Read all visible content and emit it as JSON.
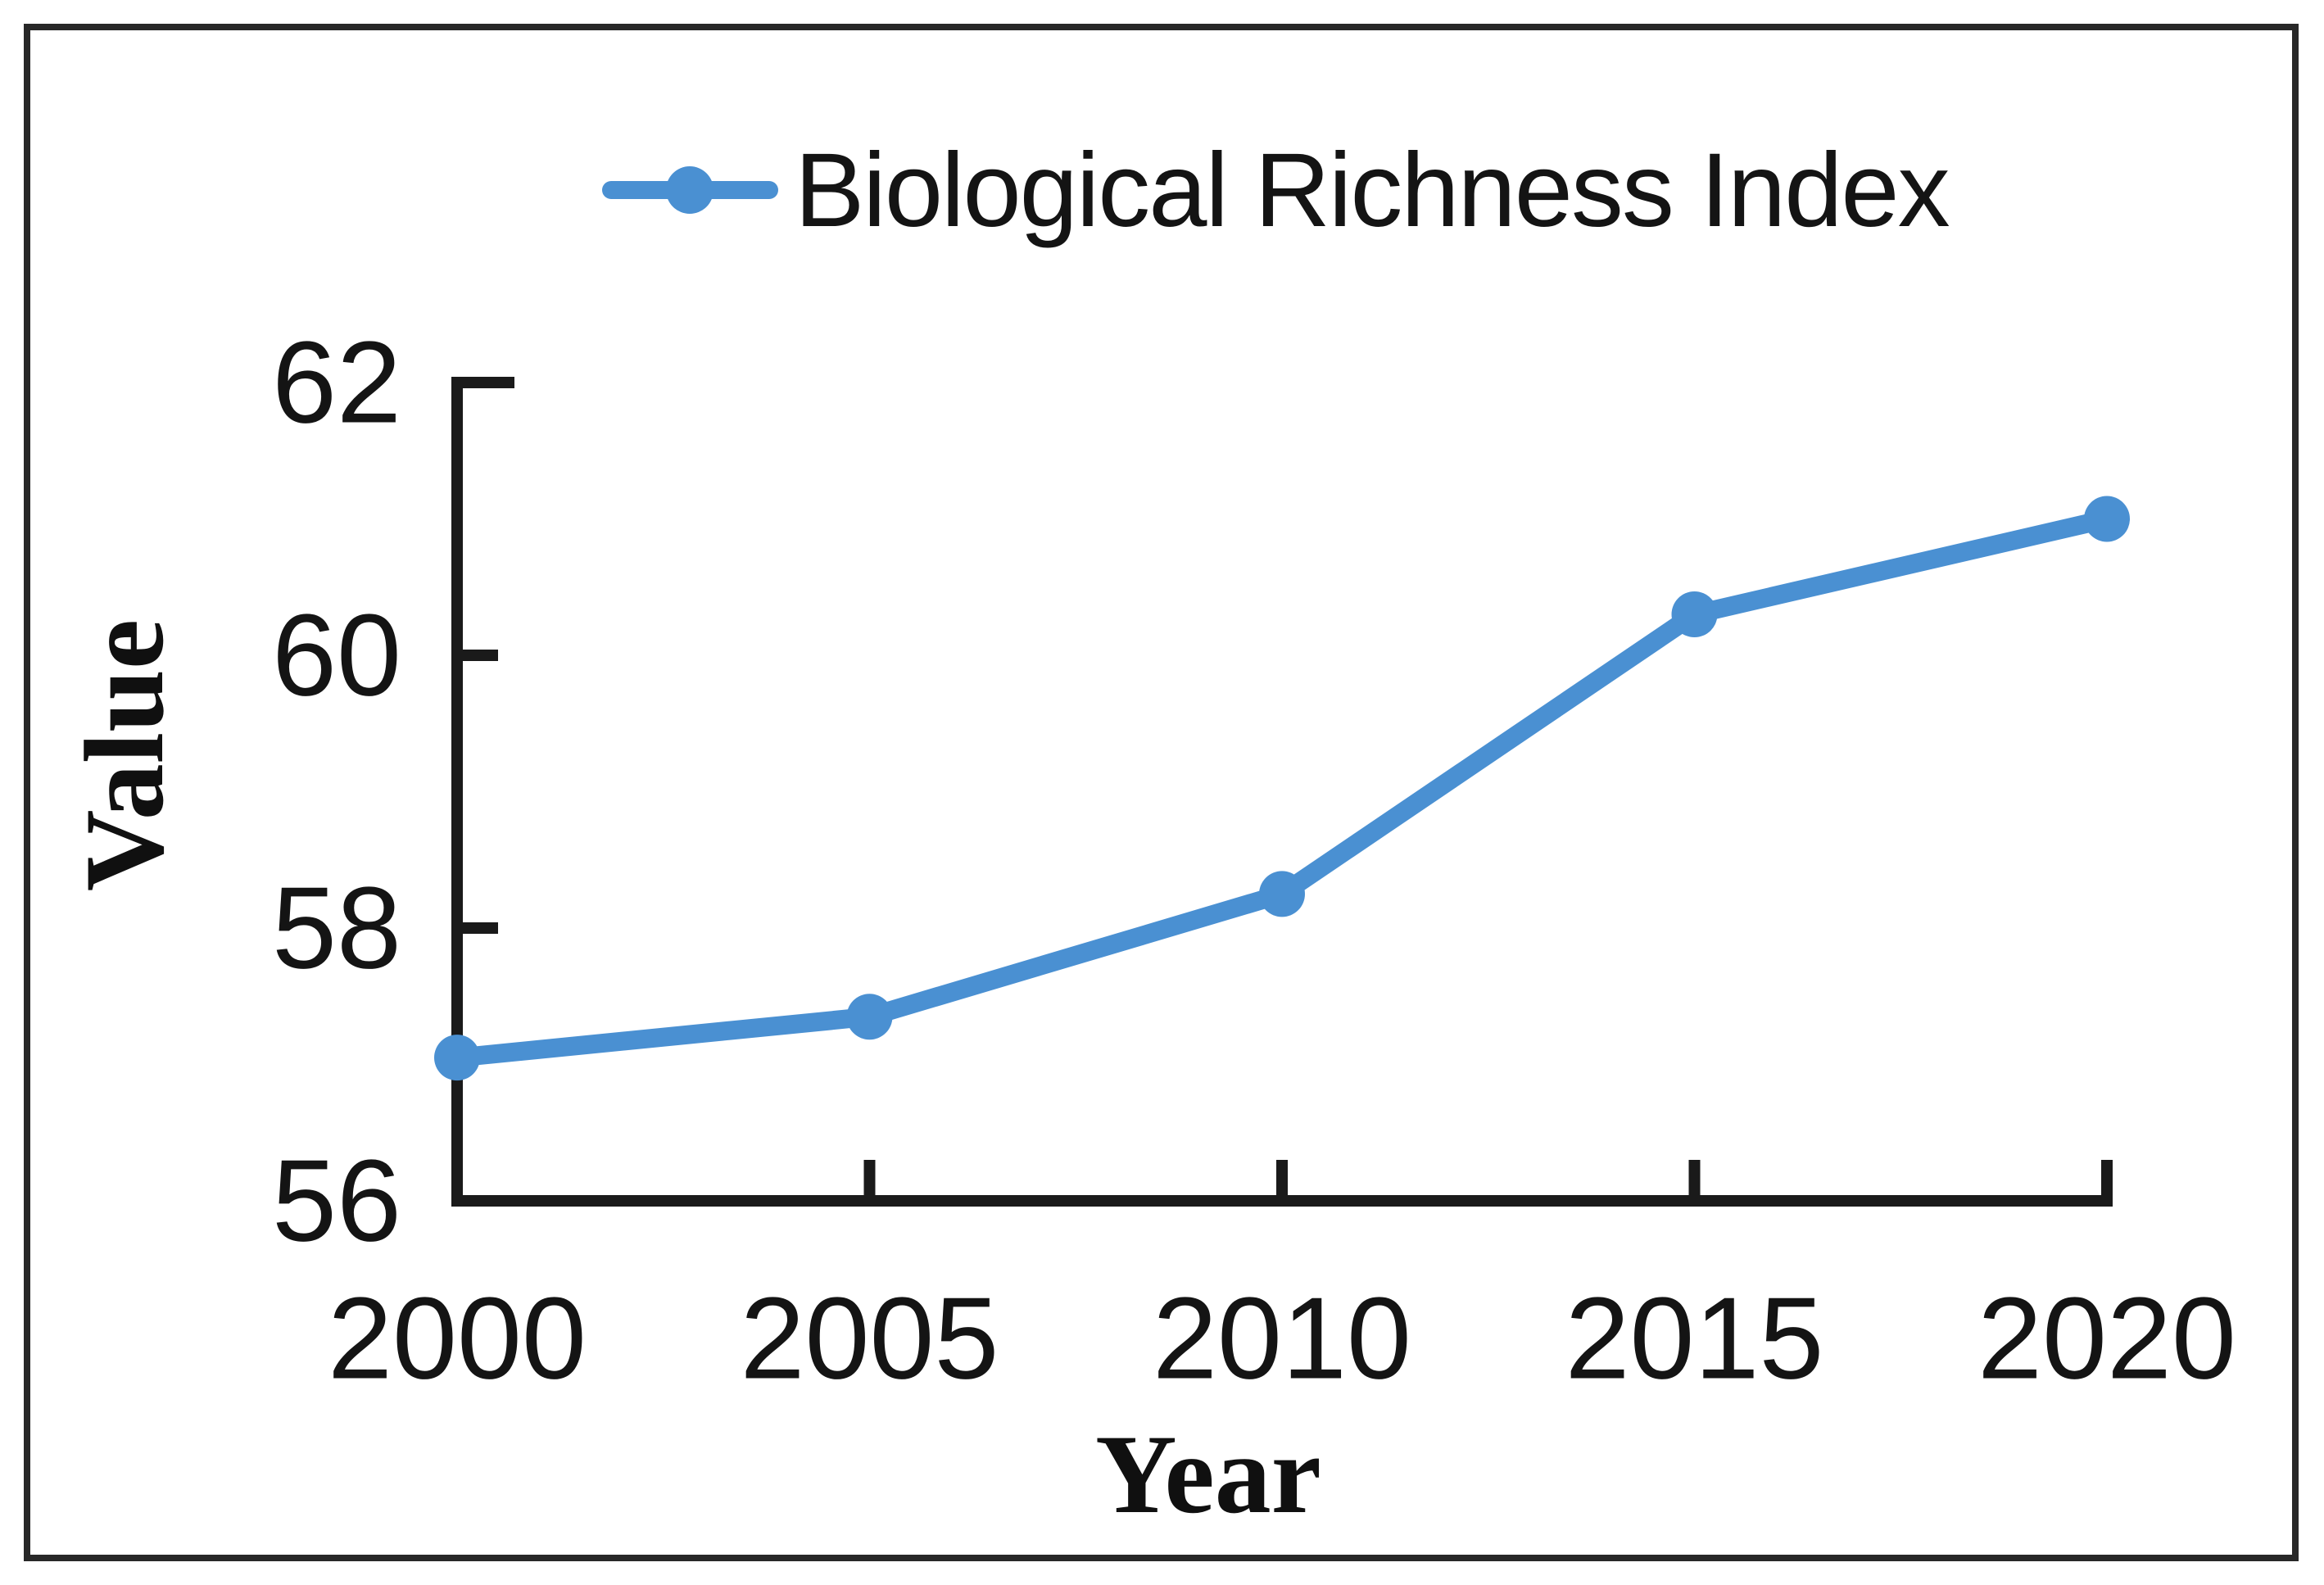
{
  "chart_data": {
    "type": "line",
    "title": "",
    "categories": [
      "2000",
      "2005",
      "2010",
      "2015",
      "2020"
    ],
    "x": [
      2000,
      2005,
      2010,
      2015,
      2020
    ],
    "series": [
      {
        "name": "Biological Richness Index",
        "values": [
          57.05,
          57.35,
          58.25,
          60.3,
          61.0
        ]
      }
    ],
    "xlabel": "Year",
    "ylabel": "Value",
    "ylim": [
      56,
      62
    ],
    "yticks": [
      56,
      58,
      60,
      62
    ],
    "grid": false,
    "legend_position": "top-center",
    "marker": "circle",
    "line_color": "#4a90d2"
  },
  "colors": {
    "line": "#4a90d2",
    "axis": "#1a1a1a",
    "text": "#141414",
    "frame": "#282828",
    "background": "#ffffff"
  }
}
